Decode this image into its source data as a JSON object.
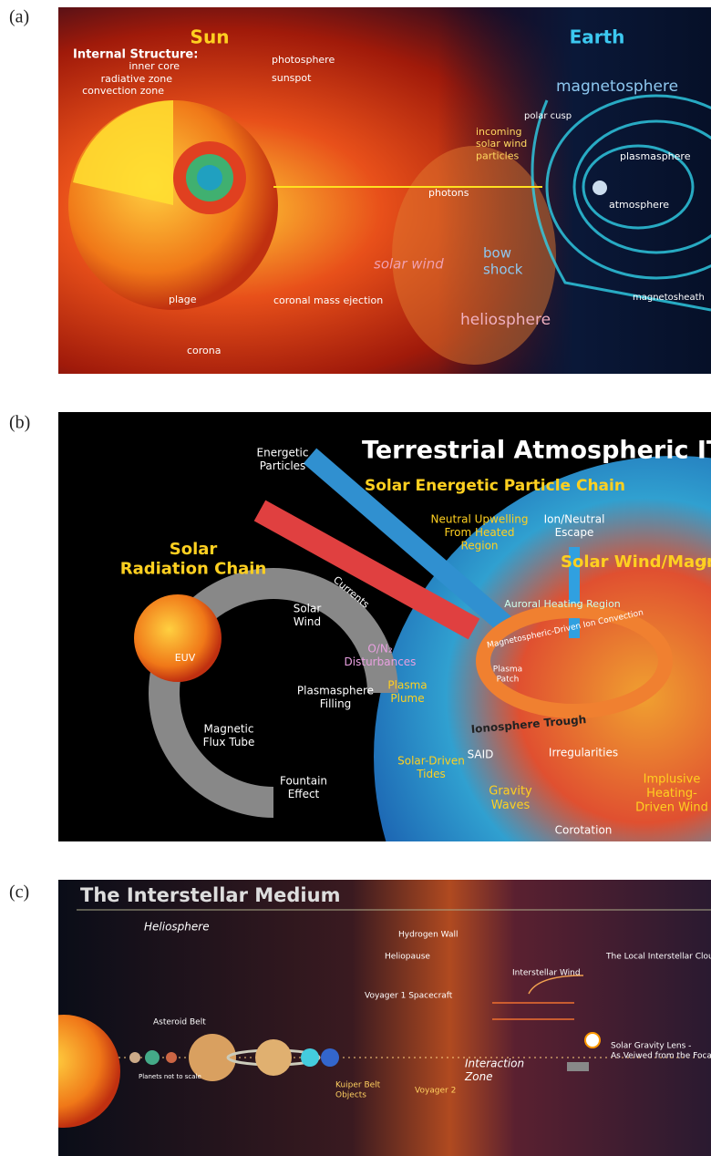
{
  "panels": [
    {
      "label": "(a)",
      "texts": [
        {
          "lines": [
            "Sun"
          ]
        },
        {
          "lines": [
            "Earth"
          ]
        },
        {
          "lines": [
            "Internal Structure:"
          ]
        },
        {
          "lines": [
            "inner core"
          ]
        },
        {
          "lines": [
            "radiative zone"
          ]
        },
        {
          "lines": [
            "convection zone"
          ]
        },
        {
          "lines": [
            "photosphere"
          ]
        },
        {
          "lines": [
            "sunspot"
          ]
        },
        {
          "lines": [
            "magnetosphere"
          ]
        },
        {
          "lines": [
            "polar cusp"
          ]
        },
        {
          "lines": [
            "incoming",
            "solar wind",
            "particles"
          ]
        },
        {
          "lines": [
            "plasmasphere"
          ]
        },
        {
          "lines": [
            "photons"
          ]
        },
        {
          "lines": [
            "atmosphere"
          ]
        },
        {
          "lines": [
            "bow",
            "shock"
          ]
        },
        {
          "lines": [
            "solar wind"
          ]
        },
        {
          "lines": [
            "magnetosheath"
          ]
        },
        {
          "lines": [
            "plage"
          ]
        },
        {
          "lines": [
            "coronal mass ejection"
          ]
        },
        {
          "lines": [
            "corona"
          ]
        },
        {
          "lines": [
            "heliosphere"
          ]
        }
      ]
    },
    {
      "label": "(b)",
      "texts": [
        {
          "lines": [
            "Terrestrial Atmospheric ITM Pro"
          ]
        },
        {
          "lines": [
            "Energetic",
            "Particles"
          ]
        },
        {
          "lines": [
            "Solar Energetic Particle Chain"
          ]
        },
        {
          "lines": [
            "Neutral Upwelling",
            "From Heated",
            "Region"
          ]
        },
        {
          "lines": [
            "Ion/Neutral",
            "Escape"
          ]
        },
        {
          "lines": [
            "Solar",
            "Radiation Chain"
          ]
        },
        {
          "lines": [
            "Solar Wind/Magn"
          ]
        },
        {
          "lines": [
            "Auroral Heating Region"
          ]
        },
        {
          "lines": [
            "Magnetospheric-Driven Ion Convection"
          ]
        },
        {
          "lines": [
            "Currents"
          ]
        },
        {
          "lines": [
            "Solar",
            "Wind"
          ]
        },
        {
          "lines": [
            "O/N₂",
            "Disturbances"
          ]
        },
        {
          "lines": [
            "EUV"
          ]
        },
        {
          "lines": [
            "Plasmasphere",
            "Filling"
          ]
        },
        {
          "lines": [
            "Plasma",
            "Patch"
          ]
        },
        {
          "lines": [
            "Magnetic",
            "Flux Tube"
          ]
        },
        {
          "lines": [
            "Plasma",
            "Plume"
          ]
        },
        {
          "lines": [
            "Ionosphere Trough"
          ]
        },
        {
          "lines": [
            "SAID"
          ]
        },
        {
          "lines": [
            "Irregularities"
          ]
        },
        {
          "lines": [
            "Fountain",
            "Effect"
          ]
        },
        {
          "lines": [
            "Solar-Driven",
            "Tides"
          ]
        },
        {
          "lines": [
            "Gravity",
            "Waves"
          ]
        },
        {
          "lines": [
            "Corotation"
          ]
        },
        {
          "lines": [
            "Implusive",
            "Heating-",
            "Driven Wind"
          ]
        },
        {
          "lines": [
            "Ion"
          ]
        }
      ]
    },
    {
      "label": "(c)",
      "texts": [
        {
          "lines": [
            "The Interstellar Medium"
          ]
        },
        {
          "lines": [
            "Heliosphere"
          ]
        },
        {
          "lines": [
            "Hydrogen Wall"
          ]
        },
        {
          "lines": [
            "Heliopause"
          ]
        },
        {
          "lines": [
            "The Local Interstellar Cloud"
          ]
        },
        {
          "lines": [
            "Interstellar Wind"
          ]
        },
        {
          "lines": [
            "Voyager 1 Spacecraft"
          ]
        },
        {
          "lines": [
            "Asteroid Belt"
          ]
        },
        {
          "lines": [
            "Solar Gravity Lens -",
            "As Veiwed from the Focal Line"
          ]
        },
        {
          "lines": [
            "Interaction",
            "Zone"
          ]
        },
        {
          "lines": [
            "Planets not to scale"
          ]
        },
        {
          "lines": [
            "Kuiper Belt",
            "Objects"
          ]
        },
        {
          "lines": [
            "Voyager 2"
          ]
        }
      ]
    }
  ]
}
